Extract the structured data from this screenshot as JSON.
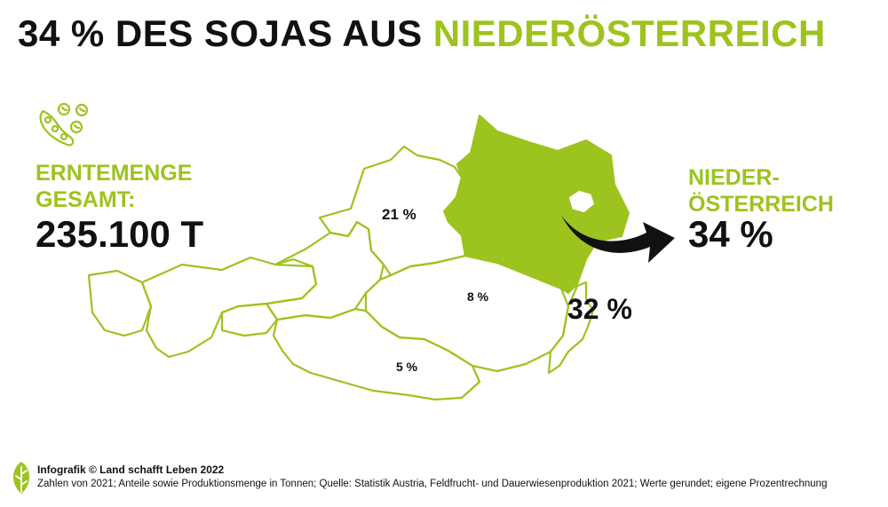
{
  "title": {
    "part1": "34 % DES SOJAS AUS",
    "part2": "NIEDERÖSTERREICH"
  },
  "harvest": {
    "label_line1": "ERNTEMENGE",
    "label_line2": "GESAMT:",
    "value": "235.100 T"
  },
  "regions": {
    "oberoesterreich": "21 %",
    "steiermark": "8 %",
    "kaernten": "5 %",
    "burgenland": "32 %"
  },
  "highlight": {
    "label_line1": "NIEDER-",
    "label_line2": "ÖSTERREICH",
    "value": "34 %"
  },
  "footer": {
    "credit": "Infografik © Land schafft Leben 2022",
    "note": "Zahlen von 2021; Anteile sowie Produktionsmenge in Tonnen; Quelle: Statistik Austria, Feldfrucht- und Dauerwiesenproduktion 2021; Werte gerundet; eigene Prozentrechnung"
  },
  "colors": {
    "accent": "#9dc31e",
    "text": "#111111",
    "background": "#ffffff"
  },
  "icons": {
    "bean": "soybean-icon",
    "logo": "leaf-logo-icon",
    "arrow": "curved-arrow-icon"
  }
}
